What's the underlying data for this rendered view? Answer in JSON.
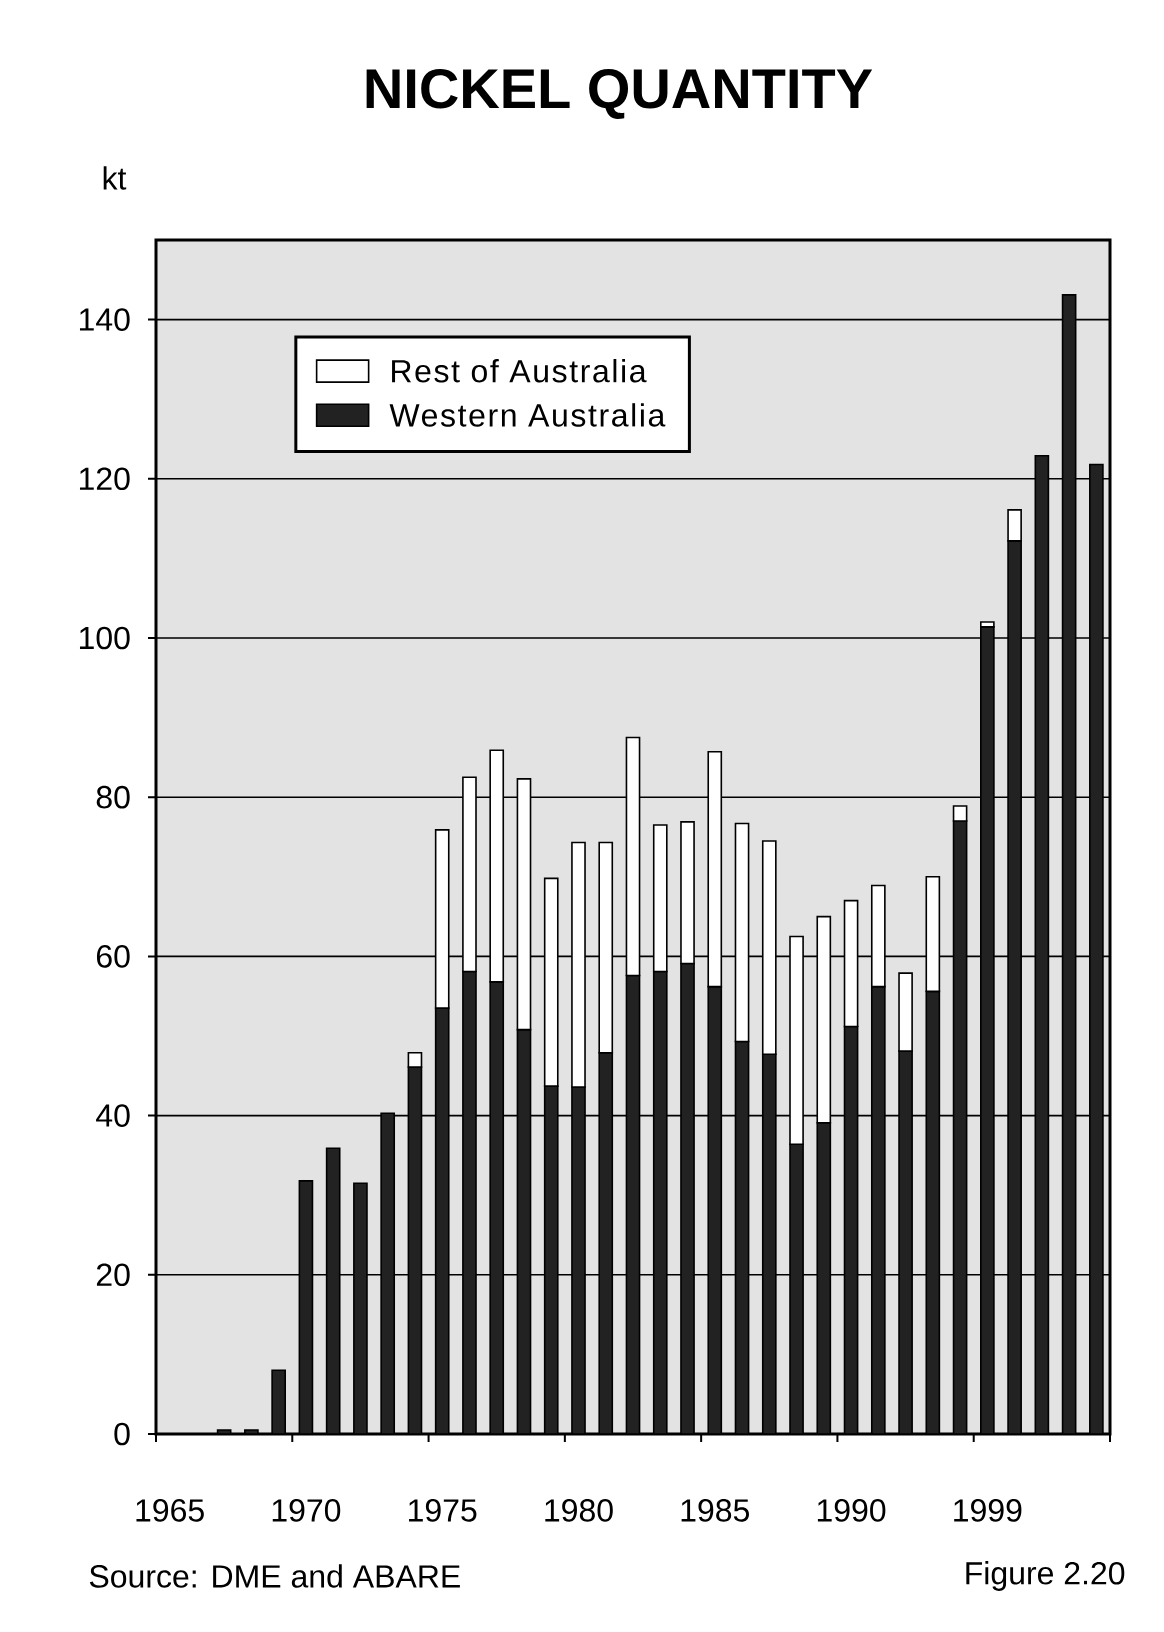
{
  "chart_data": {
    "type": "bar",
    "title": "NICKEL QUANTITY",
    "ylabel": "kt",
    "annotations": [
      "Source: DME and ABARE",
      "Figure 2.20"
    ],
    "categories": [
      "1965",
      null,
      null,
      null,
      null,
      "1970",
      null,
      null,
      null,
      null,
      "1975",
      null,
      null,
      null,
      null,
      "1980",
      null,
      null,
      null,
      null,
      "1985",
      null,
      null,
      null,
      null,
      "1990",
      null,
      null,
      null,
      null,
      "1999",
      null,
      null,
      null,
      null
    ],
    "series": [
      {
        "name": "Western Australia",
        "color": "#222222",
        "values": [
          null,
          null,
          0.5,
          0.5,
          8.0,
          31.8,
          35.9,
          31.5,
          40.3,
          46.1,
          53.5,
          58.1,
          56.8,
          50.8,
          43.7,
          43.6,
          47.9,
          57.6,
          58.1,
          59.1,
          56.2,
          49.3,
          47.7,
          36.4,
          39.1,
          51.2,
          56.2,
          48.1,
          55.6,
          77.0,
          101.4,
          112.2,
          122.9,
          143.1,
          121.8
        ]
      },
      {
        "name": "Rest of Australia",
        "color": "#ffffff",
        "values": [
          null,
          null,
          null,
          null,
          null,
          null,
          null,
          null,
          null,
          1.8,
          22.4,
          24.4,
          29.1,
          31.5,
          26.1,
          30.7,
          26.4,
          29.9,
          18.4,
          17.8,
          29.5,
          27.4,
          26.8,
          26.1,
          25.9,
          15.8,
          12.7,
          9.8,
          14.4,
          1.9,
          0.6,
          3.9,
          null,
          null,
          null
        ]
      }
    ],
    "stacked": true,
    "ylim": [
      0,
      150
    ],
    "yticks": [
      0,
      20,
      40,
      60,
      80,
      100,
      120,
      140
    ],
    "grid": "y",
    "legend": "top left"
  }
}
